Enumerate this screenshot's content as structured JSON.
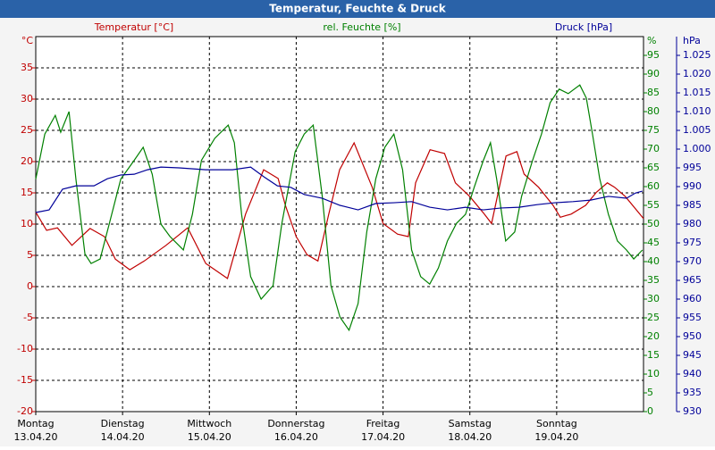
{
  "chart_data": {
    "type": "line",
    "title": "Temperatur, Feuchte & Druck",
    "grid": true,
    "xlim": [
      0,
      168
    ],
    "xticks": [
      0,
      24,
      48,
      72,
      96,
      120,
      144
    ],
    "xtick_days": [
      "Montag",
      "Dienstag",
      "Mittwoch",
      "Donnerstag",
      "Freitag",
      "Samstag",
      "Sonntag"
    ],
    "xtick_dates": [
      "13.04.20",
      "14.04.20",
      "15.04.20",
      "16.04.20",
      "17.04.20",
      "18.04.20",
      "19.04.20"
    ],
    "y_unit": "°C",
    "ylim": [
      -20,
      40
    ],
    "yticks": [
      -20,
      -15,
      -10,
      -5,
      0,
      5,
      10,
      15,
      20,
      25,
      30,
      35
    ],
    "y2_unit": "%",
    "y2lim": [
      0,
      100
    ],
    "y2ticks": [
      0,
      5,
      10,
      15,
      20,
      25,
      30,
      35,
      40,
      45,
      50,
      55,
      60,
      65,
      70,
      75,
      80,
      85,
      90,
      95
    ],
    "y3_unit": "hPa",
    "y3lim": [
      930,
      1030
    ],
    "y3ticks": [
      930,
      935,
      940,
      945,
      950,
      955,
      960,
      965,
      970,
      975,
      980,
      985,
      990,
      995,
      {
        "value": 1000,
        "label": "1.000"
      },
      {
        "value": 1005,
        "label": "1.005"
      },
      {
        "value": 1010,
        "label": "1.010"
      },
      {
        "value": 1015,
        "label": "1.015"
      },
      {
        "value": 1020,
        "label": "1.020"
      },
      {
        "value": 1025,
        "label": "1.025"
      }
    ],
    "series": [
      {
        "name": "Temperatur [°C]",
        "color": "#c00000",
        "axis": "y",
        "x": [
          0,
          3,
          6,
          10,
          15,
          19,
          22,
          26,
          30,
          36,
          42,
          47,
          53,
          58,
          63,
          67,
          69,
          72,
          75,
          78,
          81,
          84,
          88,
          93,
          96,
          100,
          103,
          105,
          109,
          113,
          116,
          120,
          124,
          126,
          130,
          133,
          135,
          139,
          143,
          145,
          148,
          152,
          155,
          158,
          160,
          163,
          168
        ],
        "values": [
          11.9,
          9.0,
          9.4,
          6.6,
          9.3,
          8.0,
          4.4,
          2.7,
          4.1,
          6.6,
          9.4,
          3.7,
          1.3,
          11.6,
          18.7,
          17.3,
          13.0,
          8.0,
          5.1,
          4.1,
          11.6,
          18.7,
          23.0,
          15.9,
          10.1,
          8.4,
          8.0,
          16.6,
          21.9,
          21.3,
          16.6,
          14.4,
          11.6,
          10.1,
          20.9,
          21.6,
          18.0,
          15.9,
          13.0,
          11.1,
          11.6,
          13.0,
          15.1,
          16.6,
          15.9,
          14.4,
          10.9
        ]
      },
      {
        "name": "rel. Feuchte [%]",
        "color": "#008000",
        "axis": "y2",
        "x": [
          0,
          2.5,
          5.4,
          6.9,
          9.2,
          11.1,
          13.6,
          15.3,
          17.8,
          20.3,
          23.5,
          27.2,
          29.7,
          32.2,
          34.6,
          37.1,
          40.8,
          43.3,
          45.8,
          49.5,
          53.2,
          54.9,
          56.9,
          59.4,
          62.3,
          65.6,
          68,
          71.7,
          74.2,
          76.7,
          79.2,
          81.6,
          84.1,
          86.6,
          89.1,
          91.5,
          94,
          96.5,
          99,
          101.4,
          103.9,
          106.4,
          108.9,
          111.3,
          113.8,
          116.3,
          118.8,
          121.2,
          123.7,
          125.7,
          127.4,
          129.9,
          132.4,
          134.3,
          137.3,
          139.8,
          142.2,
          144.7,
          147.2,
          150.4,
          152.2,
          153.9,
          155.9,
          158.3,
          160.8,
          163.3,
          165.3,
          167.7
        ],
        "values": [
          62,
          74,
          79,
          74.5,
          80,
          62,
          42,
          39.5,
          40.7,
          50,
          62,
          67,
          70.5,
          63.3,
          50,
          46.7,
          43.1,
          52.6,
          67,
          72.9,
          76.4,
          71.7,
          52.6,
          36,
          30,
          33.6,
          50,
          69.3,
          74,
          76.4,
          57.4,
          33.6,
          25.2,
          21.7,
          28.8,
          47.9,
          62.1,
          70.5,
          74,
          64.5,
          43.1,
          36,
          34,
          38.3,
          45.5,
          50.2,
          52.6,
          59.8,
          66.9,
          71.7,
          62.1,
          45.5,
          47.9,
          57.4,
          66.9,
          74,
          82.4,
          86,
          84.8,
          87.1,
          83.6,
          74,
          62.1,
          52.6,
          45.5,
          43.1,
          40.7,
          43.1
        ]
      },
      {
        "name": "Druck [hPa]",
        "color": "#000099",
        "axis": "y3",
        "x": [
          0,
          3.7,
          7.4,
          11.1,
          16.1,
          19.8,
          23.5,
          27.2,
          30.9,
          34.6,
          39.6,
          47,
          54.4,
          59.4,
          63.1,
          66.8,
          70.5,
          74.2,
          79.2,
          84.1,
          89.1,
          94,
          99,
          103.9,
          108.9,
          113.8,
          118.8,
          123.7,
          128.7,
          133.6,
          138.6,
          143.5,
          148.5,
          153.4,
          158.3,
          163.3,
          165.8,
          167.7
        ],
        "values": [
          983.1,
          983.8,
          989.3,
          990.2,
          990.2,
          992.1,
          993.1,
          993.3,
          994.5,
          995.2,
          995,
          994.5,
          994.5,
          995.2,
          992.6,
          990.2,
          989.8,
          987.9,
          986.9,
          985,
          983.8,
          985.5,
          985.7,
          986,
          984.5,
          983.8,
          984.5,
          983.8,
          984.3,
          984.5,
          985.2,
          985.7,
          986,
          986.4,
          987.4,
          986.9,
          988.3,
          988.8
        ]
      }
    ]
  }
}
